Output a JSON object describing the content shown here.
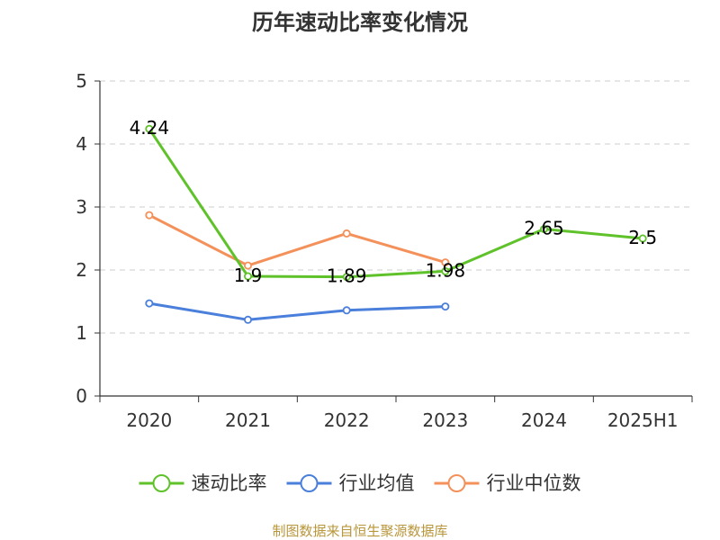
{
  "chart_data": {
    "type": "line",
    "title": "历年速动比率变化情况",
    "categories": [
      "2020",
      "2021",
      "2022",
      "2023",
      "2024",
      "2025H1"
    ],
    "ylim": [
      0,
      5
    ],
    "yticks": [
      "0",
      "1",
      "2",
      "3",
      "4",
      "5"
    ],
    "grid": true,
    "legend_position": "bottom",
    "series": [
      {
        "name": "速动比率",
        "color": "#5fc22a",
        "values": [
          4.24,
          1.9,
          1.89,
          1.98,
          2.65,
          2.5
        ],
        "labels": [
          "4.24",
          "1.9",
          "1.89",
          "1.98",
          "2.65",
          "2.5"
        ]
      },
      {
        "name": "行业均值",
        "color": "#4a7fdb",
        "values": [
          1.47,
          1.21,
          1.36,
          1.42,
          null,
          null
        ]
      },
      {
        "name": "行业中位数",
        "color": "#f4915a",
        "values": [
          2.87,
          2.07,
          2.58,
          2.12,
          null,
          null
        ]
      }
    ]
  },
  "footer": {
    "source": "制图数据来自恒生聚源数据库"
  }
}
